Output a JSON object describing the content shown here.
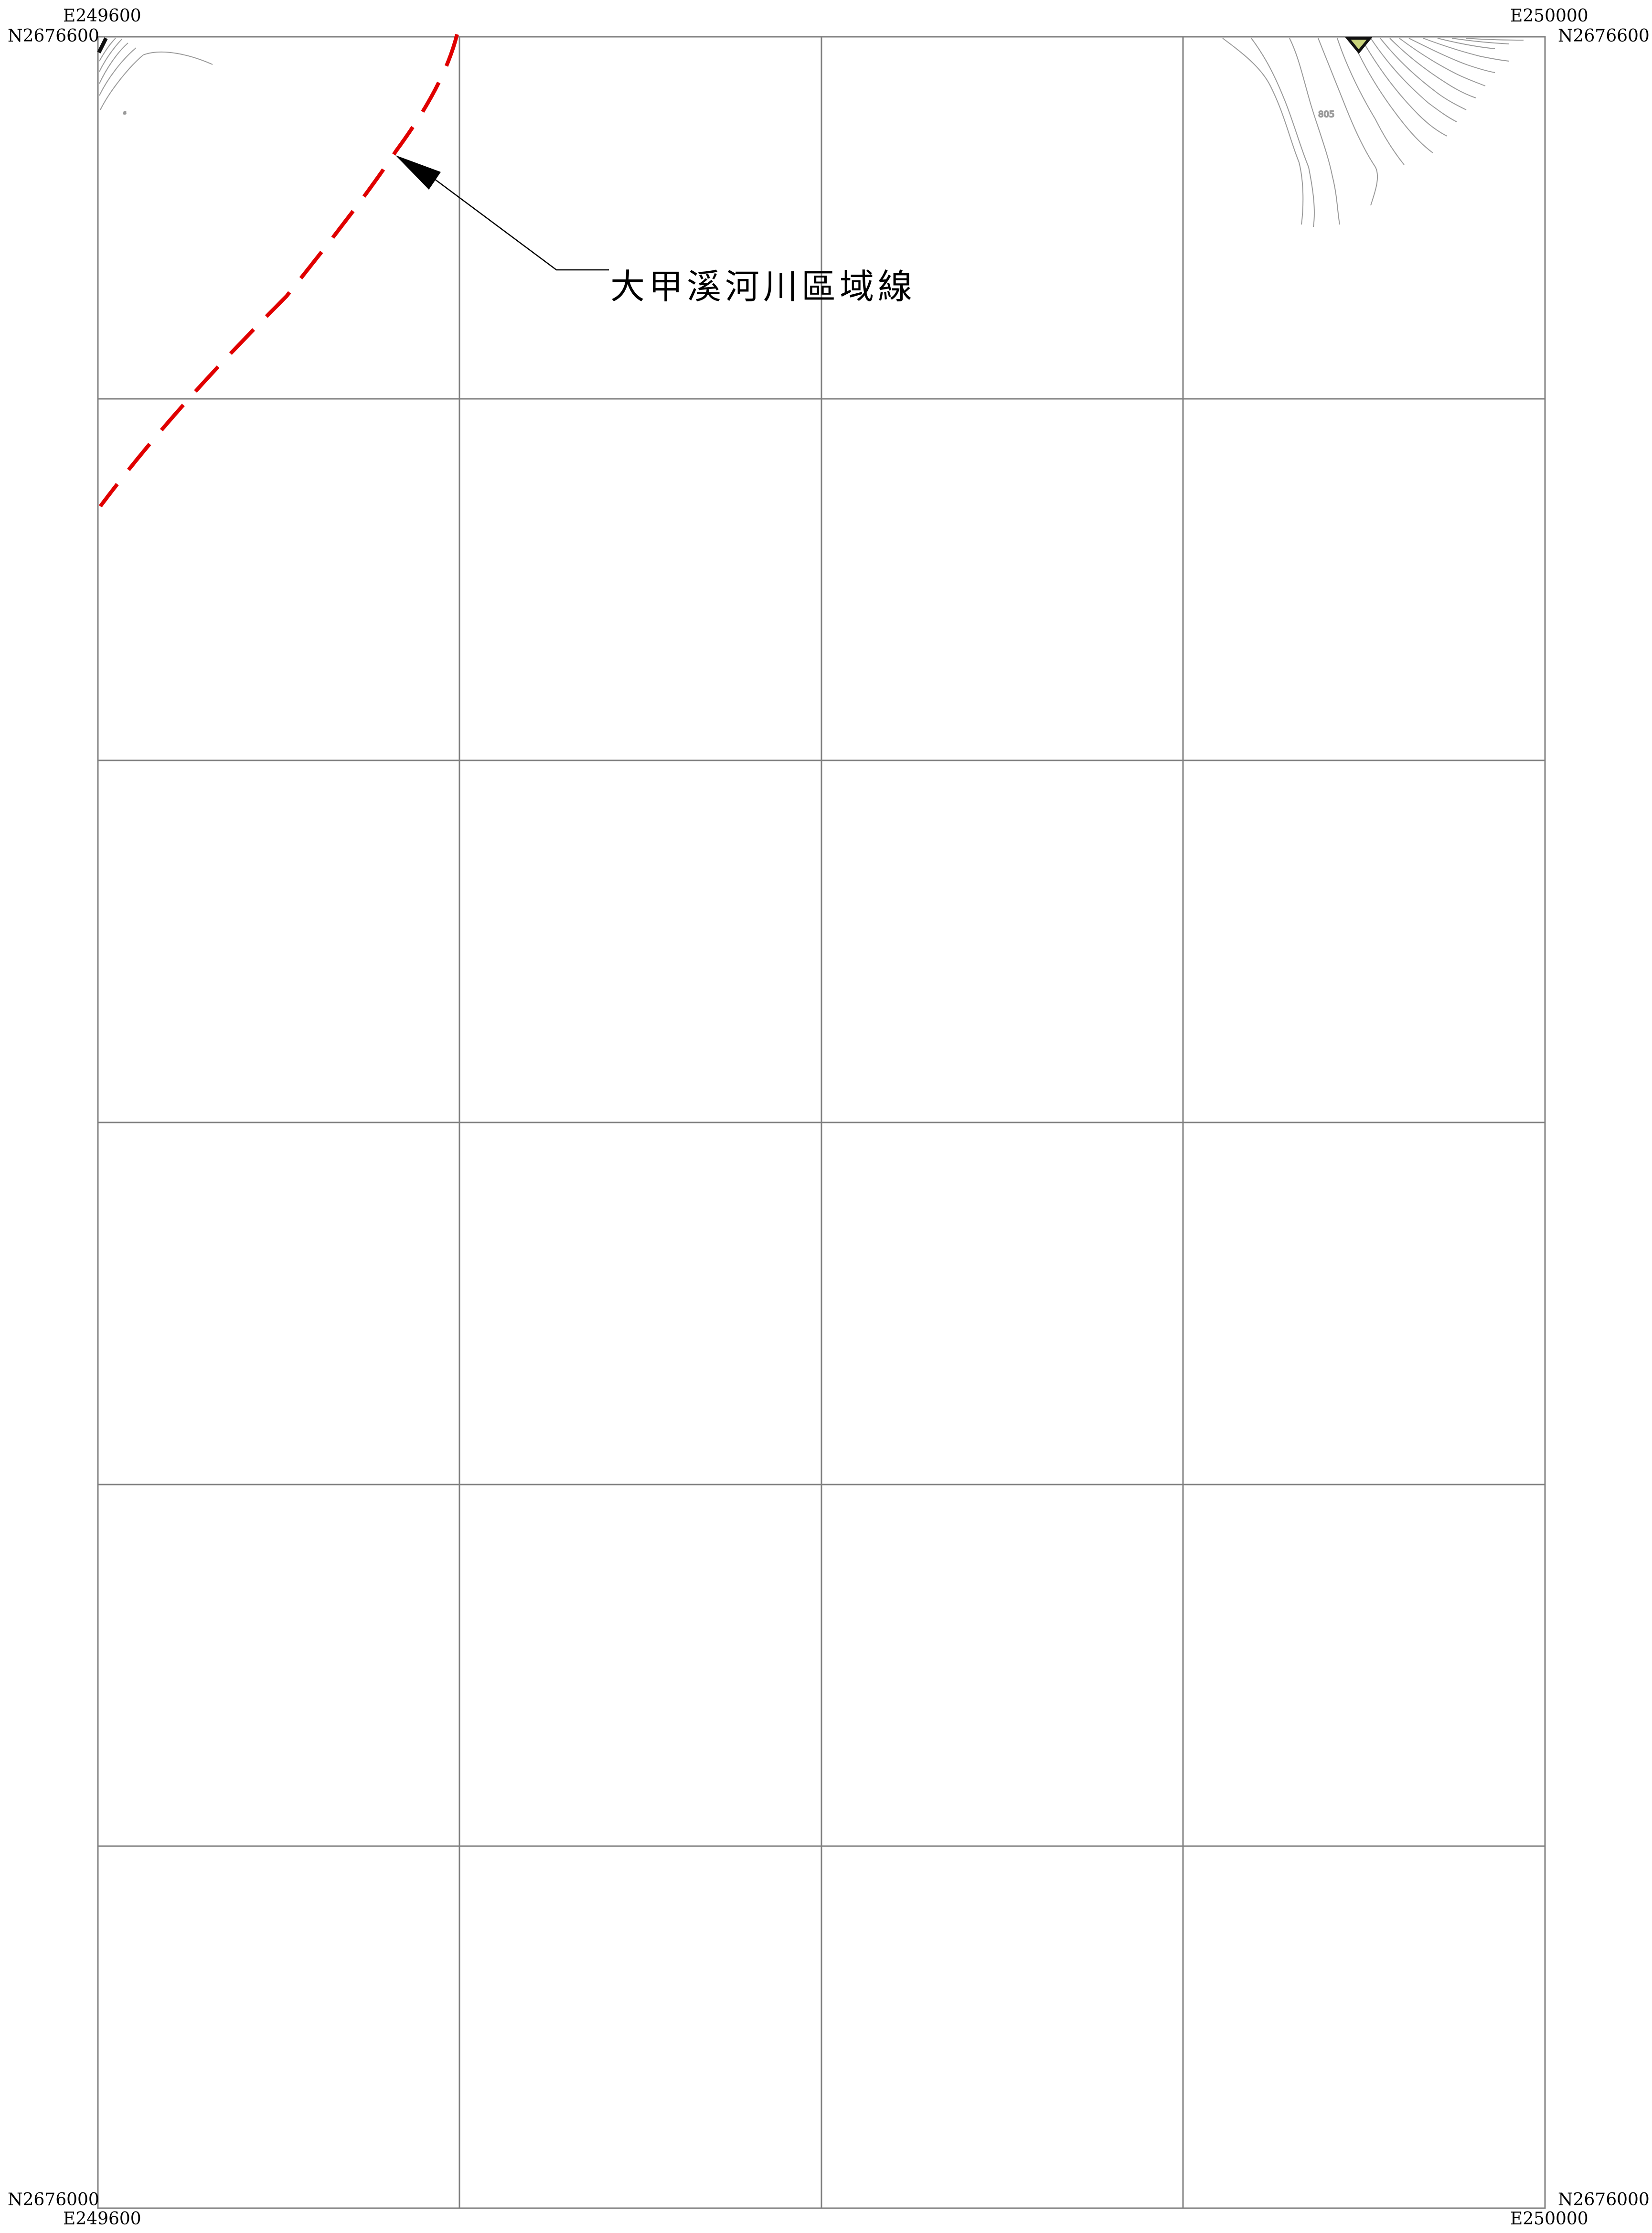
{
  "map": {
    "title_label": "大甲溪河川區域線",
    "coordinates": {
      "top_left_easting": "E249600",
      "top_left_northing": "N2676600",
      "top_right_easting": "E250000",
      "top_right_northing": "N2676600",
      "bottom_left_northing": "N2676000",
      "bottom_left_easting": "E249600",
      "bottom_right_northing": "N2676000",
      "bottom_right_easting": "E250000"
    },
    "grid": {
      "columns": 4,
      "rows": 6
    },
    "contour_label": "805",
    "colors": {
      "boundary_line": "#e00000",
      "grid_line": "#808080",
      "contour_line": "#9a9a9a",
      "marker_fill": "#c8d27a"
    }
  }
}
